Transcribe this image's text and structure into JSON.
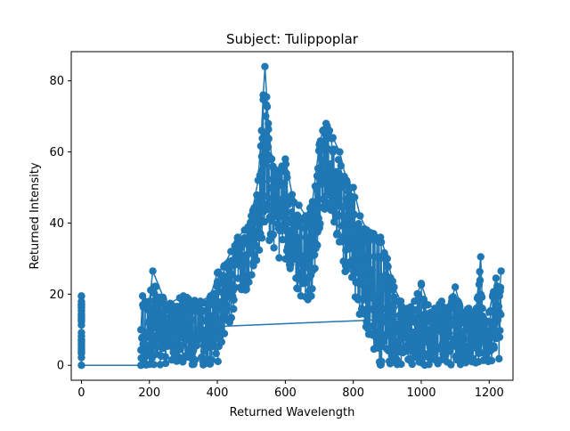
{
  "chart_data": {
    "type": "scatter",
    "title": "Subject: Tulippoplar",
    "xlabel": "Returned Wavelength",
    "ylabel": "Returned Intensity",
    "xlim": [
      -30,
      1270
    ],
    "ylim": [
      -4.2,
      88.2
    ],
    "xticks": [
      0,
      200,
      400,
      600,
      800,
      1000,
      1200
    ],
    "yticks": [
      0,
      20,
      40,
      60,
      80
    ],
    "grid": false,
    "legend": "none",
    "series": [
      {
        "color": "#1f77b4",
        "marker": "circle-with-line",
        "envelope": {
          "x": [
            0,
            0,
            175,
            180,
            200,
            210,
            250,
            300,
            350,
            380,
            400,
            420,
            440,
            460,
            480,
            500,
            520,
            530,
            535,
            540,
            550,
            560,
            570,
            580,
            590,
            600,
            620,
            640,
            660,
            680,
            700,
            710,
            720,
            730,
            740,
            760,
            780,
            800,
            820,
            840,
            860,
            880,
            900,
            920,
            940,
            960,
            980,
            1000,
            1020,
            1040,
            1060,
            1080,
            1100,
            1120,
            1140,
            1160,
            1175,
            1180,
            1200,
            1220,
            1230,
            1235
          ],
          "upper": [
            19.5,
            0,
            10,
            19.5,
            18,
            26.5,
            17,
            19.5,
            18,
            19.5,
            26,
            28,
            32,
            36,
            38,
            42,
            52,
            66,
            76,
            84,
            68,
            58,
            55,
            53,
            56,
            58,
            48,
            45,
            42,
            46,
            62,
            66,
            68,
            66,
            64,
            60,
            52,
            50,
            42,
            38,
            37,
            36,
            30,
            22,
            18,
            16,
            18,
            23,
            17,
            16,
            18,
            16,
            22,
            15,
            16,
            14,
            30.5,
            16,
            15,
            24.5,
            19.5,
            26.5
          ],
          "lower": [
            0,
            0,
            0,
            0,
            0,
            0,
            0,
            0,
            0,
            0,
            0,
            6,
            12,
            16,
            20,
            24,
            30,
            34,
            38,
            40,
            34,
            32,
            31,
            30,
            30,
            30,
            26,
            18,
            16,
            20,
            38,
            42,
            44,
            42,
            40,
            34,
            24,
            18,
            14,
            10,
            4,
            0,
            0,
            0,
            0,
            0,
            0,
            0,
            0,
            0,
            0,
            0,
            0,
            0,
            0,
            0,
            0,
            0,
            0,
            0,
            0,
            0
          ]
        }
      }
    ]
  }
}
